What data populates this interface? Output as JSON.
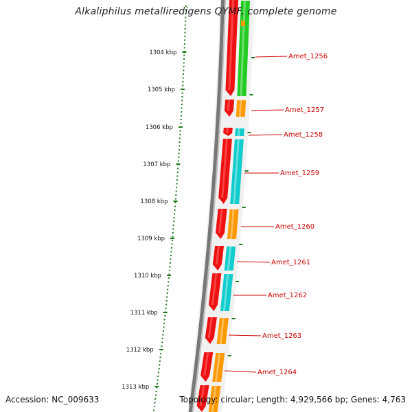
{
  "title": "Alkaliphilus metalliredigens QYMF, complete genome",
  "accession": "Accession: NC_009633",
  "summary": "Topology: circular; Length: 4,929,566 bp; Genes: 4,763",
  "ruler_marks": [
    {
      "label": "1304 kbp"
    },
    {
      "label": "1305 kbp"
    },
    {
      "label": "1306 kbp"
    },
    {
      "label": "1307 kbp"
    },
    {
      "label": "1308 kbp"
    },
    {
      "label": "1309 kbp"
    },
    {
      "label": "1310 kbp"
    },
    {
      "label": "1311 kbp"
    },
    {
      "label": "1312 kbp"
    },
    {
      "label": "1313 kbp"
    }
  ],
  "genes": [
    {
      "label": "Amet_1256",
      "color": "#22cc22"
    },
    {
      "label": "Amet_1257",
      "color": "#ff9900"
    },
    {
      "label": "Amet_1258",
      "color": "#11cccc"
    },
    {
      "label": "Amet_1259",
      "color": "#11cccc"
    },
    {
      "label": "Amet_1260",
      "color": "#ff9900"
    },
    {
      "label": "Amet_1261",
      "color": "#11cccc"
    },
    {
      "label": "Amet_1262",
      "color": "#11cccc"
    },
    {
      "label": "Amet_1263",
      "color": "#ff9900"
    },
    {
      "label": "Amet_1264",
      "color": "#ff9900"
    }
  ],
  "colors": {
    "cds_forward": "#ee1111",
    "label": "#cc0000",
    "ruler": "#1a7a1a",
    "backbone": "#777777"
  }
}
